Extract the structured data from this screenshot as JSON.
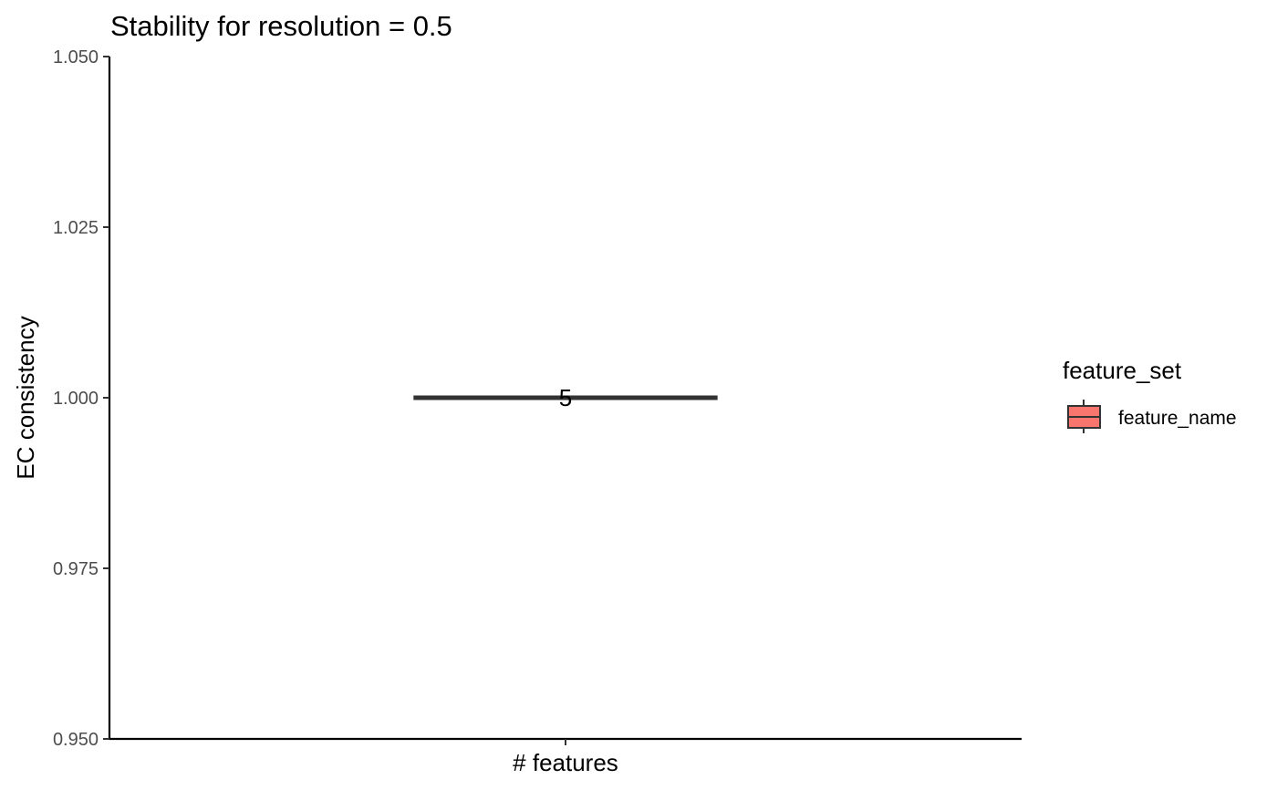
{
  "chart_data": {
    "type": "box",
    "title": "Stability for resolution = 0.5",
    "xlabel": "# features",
    "ylabel": "EC consistency",
    "categories": [
      ""
    ],
    "ylim": [
      0.95,
      1.05
    ],
    "yticks": [
      0.95,
      0.975,
      1.0,
      1.025,
      1.05
    ],
    "ytick_labels": [
      "0.950",
      "0.975",
      "1.000",
      "1.025",
      "1.050"
    ],
    "series": [
      {
        "name": "feature_name",
        "color": "#F8766D",
        "boxes": [
          {
            "category": "",
            "min": 1.0,
            "q1": 1.0,
            "median": 1.0,
            "q3": 1.0,
            "max": 1.0,
            "label": "5"
          }
        ]
      }
    ],
    "legend": {
      "title": "feature_set",
      "position": "right",
      "entries": [
        "feature_name"
      ]
    },
    "grid": false
  }
}
